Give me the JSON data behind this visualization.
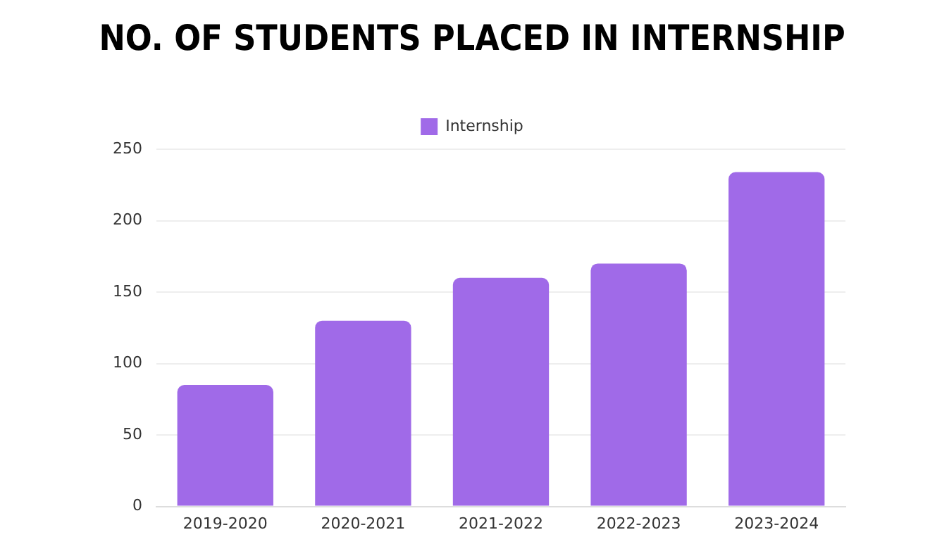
{
  "chart_data": {
    "type": "bar",
    "title": "NO. OF STUDENTS PLACED IN INTERNSHIP",
    "categories": [
      "2019-2020",
      "2020-2021",
      "2021-2022",
      "2022-2023",
      "2023-2024"
    ],
    "series": [
      {
        "name": "Internship",
        "color": "#a06ae8",
        "values": [
          85,
          130,
          160,
          170,
          234
        ]
      }
    ],
    "ylim": [
      0,
      250
    ],
    "yticks": [
      0,
      50,
      100,
      150,
      200,
      250
    ],
    "grid": "y",
    "legend": "top"
  }
}
